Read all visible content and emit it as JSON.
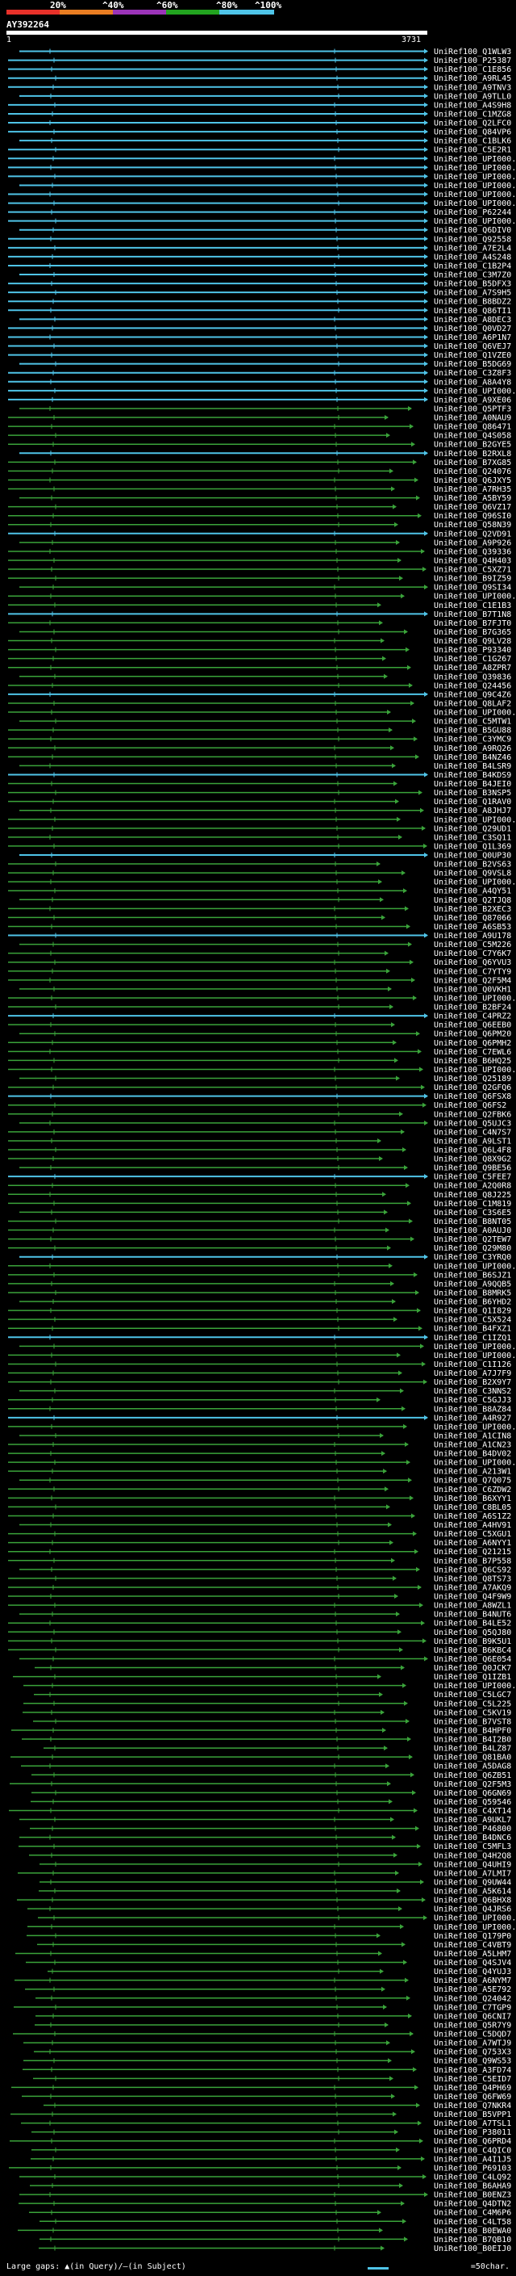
{
  "percent_scale": {
    "labels": [
      "20%",
      "^40%",
      "^60%",
      "^80%",
      "^100%"
    ],
    "colors": [
      "#e8312a",
      "#e97d22",
      "#9b34b8",
      "#22a31f",
      "#4fc4e8"
    ]
  },
  "query": {
    "title": "AY392264",
    "start": "1",
    "end": "3731"
  },
  "legend": {
    "gaps_text": "Large gaps: ▲(in Query)/—(in Subject)",
    "scale_text": "=50char."
  },
  "hits": [
    "UniRef100_Q1WLW3",
    "UniRef100_P25387",
    "UniRef100_C1E856",
    "UniRef100_A9RL45",
    "UniRef100_A9TNV3",
    "UniRef100_A9TLL0",
    "UniRef100_A4S9H8",
    "UniRef100_C1MZG8",
    "UniRef100_Q2LFC0",
    "UniRef100_Q84VP6",
    "UniRef100_C1BLK6",
    "UniRef100_C5E2R1",
    "UniRef100_UPI000...",
    "UniRef100_UPI000...",
    "UniRef100_UPI000...",
    "UniRef100_UPI000...",
    "UniRef100_UPI000...",
    "UniRef100_UPI000...",
    "UniRef100_P62244",
    "UniRef100_UPI000...",
    "UniRef100_Q6DIV0",
    "UniRef100_Q92558",
    "UniRef100_A7E2L4",
    "UniRef100_A4S248",
    "UniRef100_C1B2P4",
    "UniRef100_C3M7Z0",
    "UniRef100_B5DFX3",
    "UniRef100_A7S9H5",
    "UniRef100_B8BDZ2",
    "UniRef100_Q86TI1",
    "UniRef100_A8DEC3",
    "UniRef100_Q0VD27",
    "UniRef100_A6P1N7",
    "UniRef100_Q6VEJ7",
    "UniRef100_Q1VZE0",
    "UniRef100_B5DG69",
    "UniRef100_C3Z8F3",
    "UniRef100_A8A4Y8",
    "UniRef100_UPI000...",
    "UniRef100_A9XE06",
    "UniRef100_Q5PTF3",
    "UniRef100_A0NAU9",
    "UniRef100_Q86471",
    "UniRef100_Q4S058",
    "UniRef100_B2GYE5",
    "UniRef100_B2RXL8",
    "UniRef100_B7XG85",
    "UniRef100_Q24076",
    "UniRef100_Q6JXY5",
    "UniRef100_A7RH35",
    "UniRef100_A5BY59",
    "UniRef100_Q6VZ17",
    "UniRef100_Q96SI0",
    "UniRef100_Q58N39",
    "UniRef100_Q2VD91",
    "UniRef100_A9P926",
    "UniRef100_Q39336",
    "UniRef100_Q4H403",
    "UniRef100_C5XZ71",
    "UniRef100_B9IZ59",
    "UniRef100_Q9SI34",
    "UniRef100_UPI000...",
    "UniRef100_C1E1B3",
    "UniRef100_B7T1N8",
    "UniRef100_B7FJT0",
    "UniRef100_B7G365",
    "UniRef100_Q9LV28",
    "UniRef100_P93340",
    "UniRef100_C1G267",
    "UniRef100_A8ZPR7",
    "UniRef100_Q39836",
    "UniRef100_Q24456",
    "UniRef100_Q9C4Z6",
    "UniRef100_Q8LAF2",
    "UniRef100_UPI000...",
    "UniRef100_C5MTW1",
    "UniRef100_B5GU88",
    "UniRef100_C3YMC9",
    "UniRef100_A9RQ26",
    "UniRef100_B4NZ46",
    "UniRef100_B4LSR9",
    "UniRef100_B4KDS9",
    "UniRef100_B4JEI0",
    "UniRef100_B3NSP5",
    "UniRef100_Q1RAV0",
    "UniRef100_A8JHJ7",
    "UniRef100_UPI000...",
    "UniRef100_Q29UD1",
    "UniRef100_C3SQ11",
    "UniRef100_Q1L369",
    "UniRef100_Q0UP30",
    "UniRef100_B2VS63",
    "UniRef100_Q9VSL8",
    "UniRef100_UPI000...",
    "UniRef100_A4QY51",
    "UniRef100_Q2TJQ8",
    "UniRef100_B2XEC3",
    "UniRef100_Q87066",
    "UniRef100_A6SB53",
    "UniRef100_A9U178",
    "UniRef100_C5M226",
    "UniRef100_C7Y6K7",
    "UniRef100_Q6YVU3",
    "UniRef100_C7YTY9",
    "UniRef100_Q2F5M4",
    "UniRef100_Q0VKH1",
    "UniRef100_UPI000...",
    "UniRef100_B2BF24",
    "UniRef100_C4PRZ2",
    "UniRef100_Q6EEB0",
    "UniRef100_Q6PM20",
    "UniRef100_Q6PMH2",
    "UniRef100_C7EWL6",
    "UniRef100_B6HQ25",
    "UniRef100_UPI000...",
    "UniRef100_Q25189",
    "UniRef100_Q2GFQ6",
    "UniRef100_Q6FSX8",
    "UniRef100_Q6FS2",
    "UniRef100_Q2FBK6",
    "UniRef100_Q5UJC3",
    "UniRef100_C4N7S7",
    "UniRef100_A9LST1",
    "UniRef100_Q6L4F8",
    "UniRef100_Q8X9G2",
    "UniRef100_Q9BE56",
    "UniRef100_C5FEE7",
    "UniRef100_A2Q0R8",
    "UniRef100_Q8J225",
    "UniRef100_C1M819",
    "UniRef100_C3S6E5",
    "UniRef100_B8NT05",
    "UniRef100_A0AUJ0",
    "UniRef100_Q2TEW7",
    "UniRef100_Q29M80",
    "UniRef100_C3YRQ0",
    "UniRef100_UPI000...",
    "UniRef100_B6SJZ1",
    "UniRef100_A9QQB5",
    "UniRef100_B8MRK5",
    "UniRef100_B6YHD2",
    "UniRef100_Q1I829",
    "UniRef100_C5X524",
    "UniRef100_B4FXZ1",
    "UniRef100_C1IZQ1",
    "UniRef100_UPI000...",
    "UniRef100_UPI000...",
    "UniRef100_C1I126",
    "UniRef100_A7J7F9",
    "UniRef100_B2X9Y7",
    "UniRef100_C3NNS2",
    "UniRef100_C5GJJ3",
    "UniRef100_B8AZ84",
    "UniRef100_A4R927",
    "UniRef100_UPI000...",
    "UniRef100_A1CIN8",
    "UniRef100_A1CN23",
    "UniRef100_B4DV02",
    "UniRef100_UPI000...",
    "UniRef100_A213W1",
    "UniRef100_Q7Q075",
    "UniRef100_C6ZDW2",
    "UniRef100_B6XYY1",
    "UniRef100_C8BL05",
    "UniRef100_A6S1Z2",
    "UniRef100_A4HV91",
    "UniRef100_C5XGU1",
    "UniRef100_A6NYY1",
    "UniRef100_Q21215",
    "UniRef100_B7P558",
    "UniRef100_Q6CS92",
    "UniRef100_Q8TS73",
    "UniRef100_A7AKQ9",
    "UniRef100_Q4F9W9",
    "UniRef100_A8WZL1",
    "UniRef100_B4NUT6",
    "UniRef100_B4LE52",
    "UniRef100_Q5QJ80",
    "UniRef100_B9K5U1",
    "UniRef100_B6KBC4",
    "UniRef100_Q6E054",
    "UniRef100_Q0JCK7",
    "UniRef100_Q1IZB1",
    "UniRef100_UPI000...",
    "UniRef100_C5LGC7",
    "UniRef100_C5L225",
    "UniRef100_C5KV19",
    "UniRef100_B7VST8",
    "UniRef100_B4HPF0",
    "UniRef100_B4I2B0",
    "UniRef100_B4LZ87",
    "UniRef100_Q81BA0",
    "UniRef100_A5DAG8",
    "UniRef100_Q6ZB51",
    "UniRef100_Q2F5M3",
    "UniRef100_Q6GN69",
    "UniRef100_Q59546",
    "UniRef100_C4XT14",
    "UniRef100_A9UKL7",
    "UniRef100_P46800",
    "UniRef100_B4DNC6",
    "UniRef100_C5MFL3",
    "UniRef100_Q4H2Q8",
    "UniRef100_Q4UHI9",
    "UniRef100_A7LMI7",
    "UniRef100_Q9UW44",
    "UniRef100_A5K614",
    "UniRef100_Q6BHX8",
    "UniRef100_Q4JRS6",
    "UniRef100_UPI000...",
    "UniRef100_UPI000...",
    "UniRef100_Q179P0",
    "UniRef100_C4VBT9",
    "UniRef100_A5LHM7",
    "UniRef100_Q4SJV4",
    "UniRef100_Q4YUJ3",
    "UniRef100_A6NYM7",
    "UniRef100_A5E792",
    "UniRef100_Q24042",
    "UniRef100_C7TGP9",
    "UniRef100_Q6CNI7",
    "UniRef100_Q5R7Y9",
    "UniRef100_C5DQD7",
    "UniRef100_A7WTJ9",
    "UniRef100_Q753X3",
    "UniRef100_Q9WS53",
    "UniRef100_A3FD74",
    "UniRef100_C5EID7",
    "UniRef100_Q4PH69",
    "UniRef100_Q6FW69",
    "UniRef100_Q7NKR4",
    "UniRef100_B5VPP1",
    "UniRef100_A7TSL1",
    "UniRef100_P38011",
    "UniRef100_Q6PRD4",
    "UniRef100_C4QIC0",
    "UniRef100_A4I1J5",
    "UniRef100_P69103",
    "UniRef100_C4LQ92",
    "UniRef100_B6AHA9",
    "UniRef100_B0ENZ3",
    "UniRef100_Q4DTN2",
    "UniRef100_C4M6P6",
    "UniRef100_C4LT58",
    "UniRef100_B0EWA0",
    "UniRef100_B7QB10",
    "UniRef100_B0EIJ0"
  ]
}
